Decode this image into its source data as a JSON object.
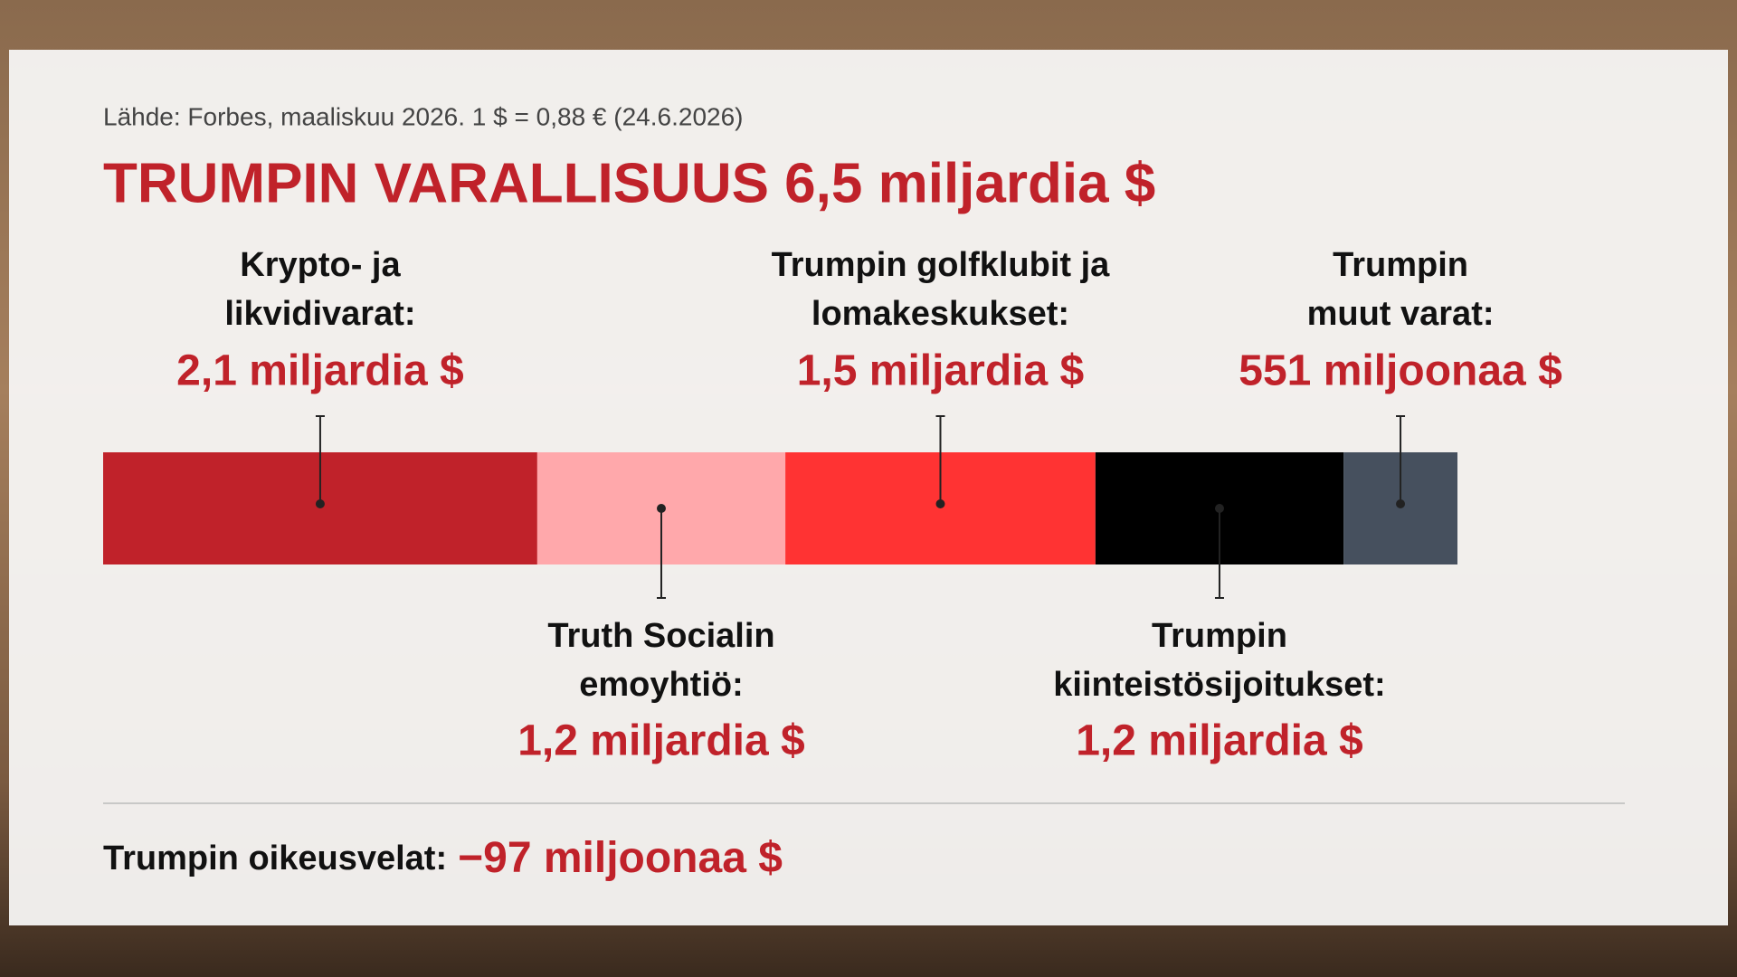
{
  "chart_data": {
    "type": "bar",
    "stacked": true,
    "source": "Lähde: Forbes, maaliskuu 2026. 1 $ = 0,88 € (24.6.2026)",
    "title": "TRUMPIN VARALLISUUS 6,5 miljardia $",
    "categories": [
      "Krypto- ja\nlikvidivarat:",
      "Truth Socialin\nemoyhtiö:",
      "Trumpin golfklubit ja\nlomakeskukset:",
      "Trumpin\nkiinteistösijoitukset:",
      "Trumpin\nmuut varat:"
    ],
    "values": [
      2100000000,
      1200000000,
      1500000000,
      1200000000,
      551000000
    ],
    "value_labels": [
      "2,1 miljardia $",
      "1,2 miljardia $",
      "1,5 miljardia $",
      "1,2 miljardia $",
      "551 miljoonaa $"
    ],
    "colors": [
      "#c0222a",
      "#ffa8ab",
      "#ff3333",
      "#000000",
      "#46505e"
    ],
    "debt_label": "Trumpin oikeusvelat:",
    "debt_value": -97000000,
    "debt_value_label": "−97 miljoonaa $"
  }
}
